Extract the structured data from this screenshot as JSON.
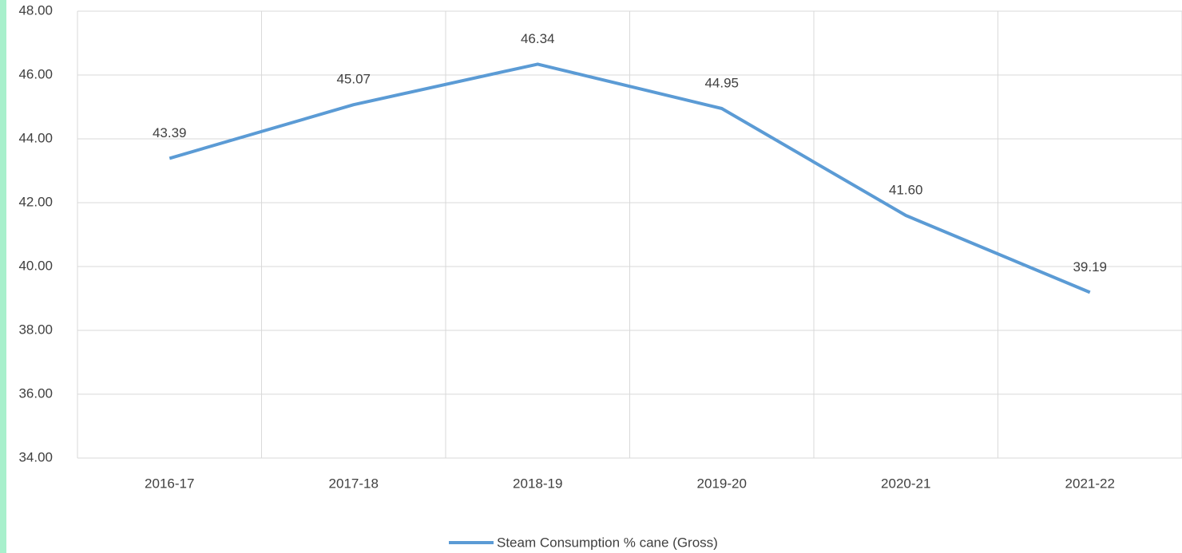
{
  "chart_data": {
    "type": "line",
    "categories": [
      "2016-17",
      "2017-18",
      "2018-19",
      "2019-20",
      "2020-21",
      "2021-22"
    ],
    "series": [
      {
        "name": "Steam Consumption % cane (Gross)",
        "color": "#5b9bd5",
        "values": [
          43.39,
          45.07,
          46.34,
          44.95,
          41.6,
          39.19
        ],
        "value_labels": [
          "43.39",
          "45.07",
          "46.34",
          "44.95",
          "41.60",
          "39.19"
        ]
      }
    ],
    "ylim": [
      34,
      48
    ],
    "yticks": [
      {
        "value": 34,
        "label": "34.00"
      },
      {
        "value": 36,
        "label": "36.00"
      },
      {
        "value": 38,
        "label": "38.00"
      },
      {
        "value": 40,
        "label": "40.00"
      },
      {
        "value": 42,
        "label": "42.00"
      },
      {
        "value": 44,
        "label": "44.00"
      },
      {
        "value": 46,
        "label": "46.00"
      },
      {
        "value": 48,
        "label": "48.00"
      }
    ],
    "grid": true,
    "legend": "bottom"
  }
}
